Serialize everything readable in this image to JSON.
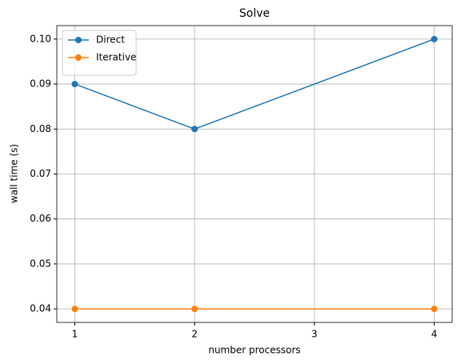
{
  "chart_data": {
    "type": "line",
    "title": "Solve",
    "x_label": "number processors",
    "y_label": "wall time (s)",
    "x": [
      1,
      2,
      4
    ],
    "series": [
      {
        "name": "Direct",
        "color": "#1f77b4",
        "values": [
          0.09,
          0.08,
          0.1
        ]
      },
      {
        "name": "Iterative",
        "color": "#ff7f0e",
        "values": [
          0.04,
          0.04,
          0.04
        ]
      }
    ],
    "xlim": [
      0.85,
      4.15
    ],
    "xticks": [
      1,
      2,
      3,
      4
    ],
    "ylim": [
      0.037,
      0.103
    ],
    "yticks": [
      0.04,
      0.05,
      0.06,
      0.07,
      0.08,
      0.09,
      {
        "value": 0.1,
        "label": "0.10"
      }
    ],
    "grid": true,
    "legend": "upper-left"
  }
}
